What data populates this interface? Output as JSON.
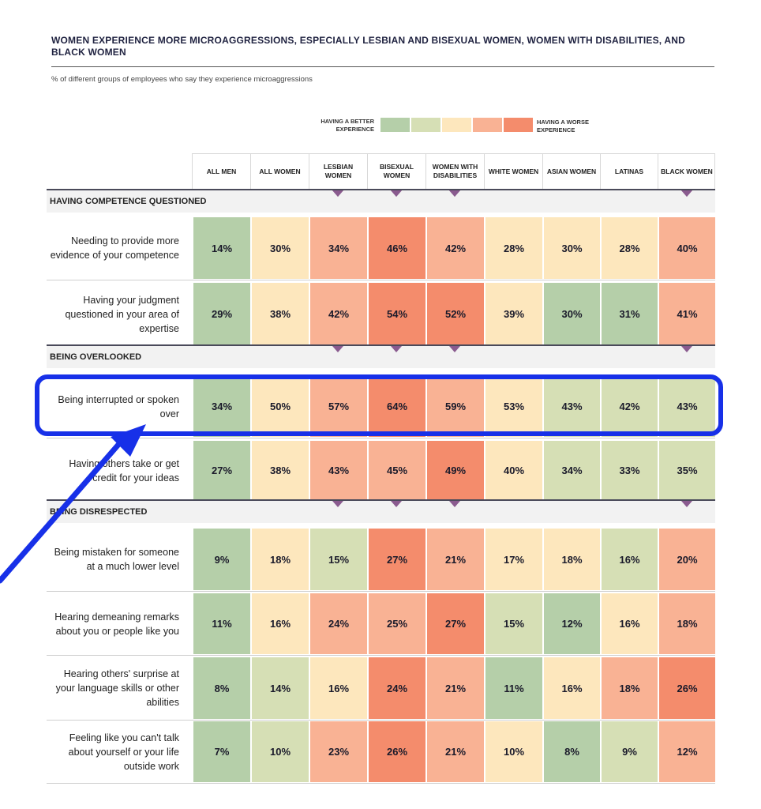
{
  "title": "WOMEN EXPERIENCE MORE MICROAGGRESSIONS, ESPECIALLY LESBIAN AND BISEXUAL WOMEN, WOMEN WITH DISABILITIES, AND BLACK WOMEN",
  "subtitle": "% of different groups of employees who say they experience microaggressions",
  "legend": {
    "better": "HAVING A BETTER EXPERIENCE",
    "worse": "HAVING A WORSE EXPERIENCE",
    "colors": [
      "#b5cfa9",
      "#d6dfb5",
      "#fde7bd",
      "#f9b294",
      "#f48c6c"
    ]
  },
  "colors": {
    "accent": "#1730e8",
    "marker": "#8a5b8f",
    "scale": [
      "#b5cfa9",
      "#d6dfb5",
      "#fde7bd",
      "#f9b294",
      "#f48c6c"
    ]
  },
  "chart_data": {
    "type": "table",
    "title": "WOMEN EXPERIENCE MORE MICROAGGRESSIONS, ESPECIALLY LESBIAN AND BISEXUAL WOMEN, WOMEN WITH DISABILITIES, AND BLACK WOMEN",
    "unit": "%",
    "columns": [
      "ALL MEN",
      "ALL WOMEN",
      "LESBIAN WOMEN",
      "BISEXUAL WOMEN",
      "WOMEN WITH DISABILITIES",
      "WHITE WOMEN",
      "ASIAN WOMEN",
      "LATINAS",
      "BLACK WOMEN"
    ],
    "marked_columns": [
      2,
      3,
      4,
      8
    ],
    "highlighted_row": "Being interrupted or spoken over",
    "sections": [
      {
        "name": "HAVING COMPETENCE QUESTIONED",
        "rows": [
          {
            "label": "Needing to provide more evidence of your competence",
            "values": [
              14,
              30,
              34,
              46,
              42,
              28,
              30,
              28,
              40
            ],
            "shades": [
              0,
              2,
              3,
              4,
              3,
              2,
              2,
              2,
              3
            ]
          },
          {
            "label": "Having your judgment questioned in your area of expertise",
            "values": [
              29,
              38,
              42,
              54,
              52,
              39,
              30,
              31,
              41
            ],
            "shades": [
              0,
              2,
              3,
              4,
              4,
              2,
              0,
              0,
              3
            ]
          }
        ]
      },
      {
        "name": "BEING OVERLOOKED",
        "rows": [
          {
            "label": "Being interrupted or spoken over",
            "values": [
              34,
              50,
              57,
              64,
              59,
              53,
              43,
              42,
              43
            ],
            "shades": [
              0,
              2,
              3,
              4,
              3,
              2,
              1,
              1,
              1
            ]
          },
          {
            "label": "Having others take or get credit for your ideas",
            "values": [
              27,
              38,
              43,
              45,
              49,
              40,
              34,
              33,
              35
            ],
            "shades": [
              0,
              2,
              3,
              3,
              4,
              2,
              1,
              1,
              1
            ]
          }
        ]
      },
      {
        "name": "BEING DISRESPECTED",
        "rows": [
          {
            "label": "Being mistaken for someone at a much lower level",
            "values": [
              9,
              18,
              15,
              27,
              21,
              17,
              18,
              16,
              20
            ],
            "shades": [
              0,
              2,
              1,
              4,
              3,
              2,
              2,
              1,
              3
            ]
          },
          {
            "label": "Hearing demeaning remarks about you or people like you",
            "values": [
              11,
              16,
              24,
              25,
              27,
              15,
              12,
              16,
              18
            ],
            "shades": [
              0,
              2,
              3,
              3,
              4,
              1,
              0,
              2,
              3
            ]
          },
          {
            "label": "Hearing others' surprise at your language skills or other abilities",
            "values": [
              8,
              14,
              16,
              24,
              21,
              11,
              16,
              18,
              26
            ],
            "shades": [
              0,
              1,
              2,
              4,
              3,
              0,
              2,
              3,
              4
            ]
          },
          {
            "label": "Feeling like you can't talk about yourself or your life outside work",
            "values": [
              7,
              10,
              23,
              26,
              21,
              10,
              8,
              9,
              12
            ],
            "shades": [
              0,
              1,
              3,
              4,
              3,
              2,
              0,
              1,
              3
            ]
          }
        ]
      }
    ]
  }
}
